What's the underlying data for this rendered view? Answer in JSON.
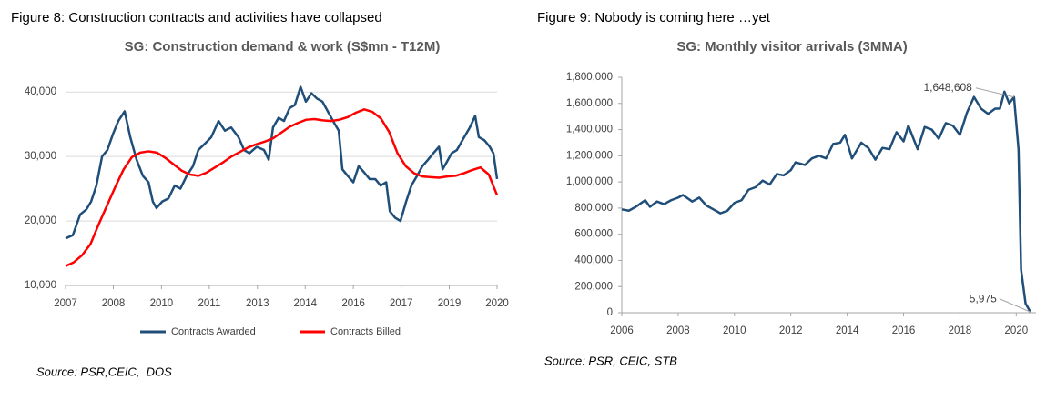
{
  "chart_data": [
    {
      "type": "line",
      "figure_caption": "Figure 8: Construction contracts and activities have collapsed",
      "title": "SG: Construction demand & work (S$mn - T12M)",
      "source": "Source: PSR,CEIC,  DOS",
      "xlim": [
        2007,
        2020
      ],
      "xticks": [
        {
          "value": 2007,
          "label": "2007"
        },
        {
          "value": 2008.44,
          "label": "2008"
        },
        {
          "value": 2009.89,
          "label": "2010"
        },
        {
          "value": 2011.33,
          "label": "2011"
        },
        {
          "value": 2012.78,
          "label": "2013"
        },
        {
          "value": 2014.22,
          "label": "2014"
        },
        {
          "value": 2015.67,
          "label": "2016"
        },
        {
          "value": 2017.11,
          "label": "2017"
        },
        {
          "value": 2018.56,
          "label": "2019"
        },
        {
          "value": 2020,
          "label": "2020"
        }
      ],
      "ylim": [
        10000,
        42000
      ],
      "yticks": [
        {
          "value": 10000,
          "label": "10,000"
        },
        {
          "value": 20000,
          "label": "20,000"
        },
        {
          "value": 30000,
          "label": "30,000"
        },
        {
          "value": 40000,
          "label": "40,000"
        }
      ],
      "grid": true,
      "legend": "bottom",
      "series": [
        {
          "name": "Contracts Awarded",
          "color": "#1f4e79",
          "x": [
            2007.0,
            2007.22,
            2007.44,
            2007.63,
            2007.77,
            2007.93,
            2008.1,
            2008.26,
            2008.43,
            2008.59,
            2008.78,
            2008.95,
            2009.14,
            2009.33,
            2009.5,
            2009.63,
            2009.74,
            2009.91,
            2010.1,
            2010.29,
            2010.46,
            2010.65,
            2010.84,
            2011.0,
            2011.2,
            2011.39,
            2011.61,
            2011.8,
            2011.99,
            2012.21,
            2012.38,
            2012.54,
            2012.76,
            2012.98,
            2013.12,
            2013.25,
            2013.42,
            2013.58,
            2013.75,
            2013.91,
            2014.08,
            2014.24,
            2014.41,
            2014.57,
            2014.74,
            2014.9,
            2015.06,
            2015.23,
            2015.34,
            2015.5,
            2015.67,
            2015.83,
            2016.0,
            2016.16,
            2016.33,
            2016.49,
            2016.66,
            2016.77,
            2016.93,
            2017.09,
            2017.26,
            2017.42,
            2017.59,
            2017.75,
            2017.92,
            2018.08,
            2018.25,
            2018.36,
            2018.47,
            2018.63,
            2018.79,
            2019.01,
            2019.18,
            2019.34,
            2019.45,
            2019.62,
            2019.78,
            2019.89,
            2020.0
          ],
          "values": [
            17300,
            17800,
            21000,
            21800,
            23000,
            25500,
            30000,
            31000,
            33500,
            35500,
            37000,
            33000,
            29500,
            27000,
            26000,
            23000,
            22000,
            23000,
            23500,
            25500,
            25000,
            27000,
            28500,
            31000,
            32000,
            33000,
            35500,
            34000,
            34500,
            33000,
            31000,
            30500,
            31500,
            31000,
            29500,
            34500,
            36000,
            35500,
            37500,
            38000,
            40800,
            38500,
            39800,
            39000,
            38500,
            37000,
            35500,
            34000,
            28000,
            27000,
            26000,
            28500,
            27500,
            26500,
            26500,
            25500,
            26000,
            21500,
            20500,
            20000,
            23000,
            25500,
            27000,
            28500,
            29500,
            30500,
            31500,
            28000,
            29000,
            30500,
            31000,
            33000,
            34500,
            36300,
            33000,
            32500,
            31500,
            30500,
            26500
          ]
        },
        {
          "name": "Contracts Billed",
          "color": "#ff0000",
          "x": [
            2007.0,
            2007.25,
            2007.5,
            2007.75,
            2008.0,
            2008.25,
            2008.5,
            2008.75,
            2009.0,
            2009.25,
            2009.5,
            2009.75,
            2010.0,
            2010.25,
            2010.5,
            2010.75,
            2011.0,
            2011.25,
            2011.5,
            2011.75,
            2012.0,
            2012.25,
            2012.5,
            2012.75,
            2013.0,
            2013.25,
            2013.5,
            2013.75,
            2014.0,
            2014.25,
            2014.5,
            2014.75,
            2015.0,
            2015.25,
            2015.5,
            2015.75,
            2016.0,
            2016.25,
            2016.5,
            2016.75,
            2017.0,
            2017.25,
            2017.5,
            2017.75,
            2018.0,
            2018.25,
            2018.5,
            2018.75,
            2019.0,
            2019.25,
            2019.5,
            2019.75,
            2020.0
          ],
          "values": [
            13000,
            13600,
            14700,
            16400,
            19500,
            22400,
            25300,
            28000,
            29900,
            30600,
            30800,
            30600,
            29800,
            28800,
            27800,
            27200,
            27000,
            27500,
            28300,
            29100,
            30000,
            30700,
            31400,
            31900,
            32300,
            32800,
            33700,
            34600,
            35200,
            35700,
            35800,
            35600,
            35500,
            35700,
            36100,
            36800,
            37300,
            36900,
            35900,
            33800,
            30500,
            28500,
            27400,
            26900,
            26800,
            26700,
            26900,
            27000,
            27400,
            27900,
            28300,
            27200,
            24000
          ]
        }
      ]
    },
    {
      "type": "line",
      "figure_caption": "Figure 9: Nobody is coming here …yet",
      "title": "SG: Monthly visitor arrivals (3MMA)",
      "source": "Source: PSR, CEIC, STB",
      "xlim": [
        2006,
        2020.7
      ],
      "xticks": [
        2006,
        2008,
        2010,
        2012,
        2014,
        2016,
        2018,
        2020
      ],
      "ylim": [
        0,
        1800000
      ],
      "yticks": [
        0,
        {
          "value": 200000,
          "label": "200,000"
        },
        {
          "value": 400000,
          "label": "400,000"
        },
        {
          "value": 600000,
          "label": "600,000"
        },
        {
          "value": 800000,
          "label": "800,000"
        },
        {
          "value": 1000000,
          "label": "1,000,000"
        },
        {
          "value": 1200000,
          "label": "1,200,000"
        },
        {
          "value": 1400000,
          "label": "1,400,000"
        },
        {
          "value": 1600000,
          "label": "1,600,000"
        },
        {
          "value": 1800000,
          "label": "1,800,000"
        }
      ],
      "grid": false,
      "annotations": [
        {
          "label": "1,648,608",
          "x": 2019.92,
          "y": 1648608
        },
        {
          "label": "5,975",
          "x": 2020.5,
          "y": 5975
        }
      ],
      "series": [
        {
          "color": "#1f4e79",
          "x": [
            2006.0,
            2006.25,
            2006.5,
            2006.83,
            2007.0,
            2007.25,
            2007.5,
            2007.75,
            2008.0,
            2008.17,
            2008.5,
            2008.75,
            2009.0,
            2009.25,
            2009.5,
            2009.75,
            2010.0,
            2010.25,
            2010.5,
            2010.75,
            2011.0,
            2011.25,
            2011.5,
            2011.75,
            2012.0,
            2012.17,
            2012.5,
            2012.75,
            2013.0,
            2013.25,
            2013.5,
            2013.75,
            2013.92,
            2014.17,
            2014.5,
            2014.75,
            2015.0,
            2015.25,
            2015.5,
            2015.75,
            2016.0,
            2016.17,
            2016.5,
            2016.75,
            2017.0,
            2017.25,
            2017.5,
            2017.75,
            2018.0,
            2018.25,
            2018.5,
            2018.75,
            2019.0,
            2019.25,
            2019.42,
            2019.58,
            2019.75,
            2019.92,
            2020.08,
            2020.17,
            2020.33,
            2020.5
          ],
          "values": [
            790000,
            780000,
            810000,
            860000,
            810000,
            850000,
            830000,
            860000,
            880000,
            900000,
            850000,
            880000,
            820000,
            790000,
            760000,
            780000,
            840000,
            860000,
            940000,
            960000,
            1010000,
            980000,
            1060000,
            1050000,
            1090000,
            1150000,
            1130000,
            1180000,
            1200000,
            1180000,
            1290000,
            1300000,
            1360000,
            1180000,
            1300000,
            1260000,
            1170000,
            1260000,
            1250000,
            1380000,
            1310000,
            1430000,
            1250000,
            1420000,
            1400000,
            1330000,
            1450000,
            1430000,
            1360000,
            1530000,
            1650000,
            1560000,
            1520000,
            1560000,
            1560000,
            1690000,
            1600000,
            1648608,
            1250000,
            330000,
            70000,
            5975
          ]
        }
      ]
    }
  ]
}
